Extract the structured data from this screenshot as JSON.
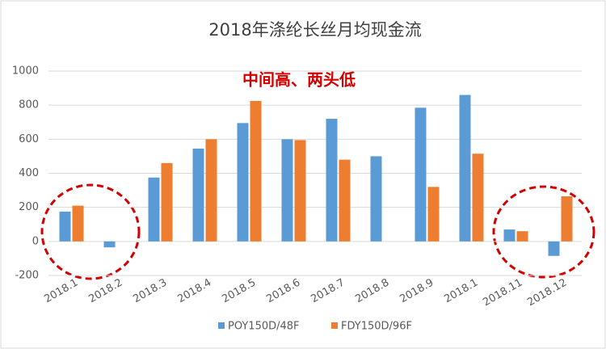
{
  "chart_data": {
    "type": "bar",
    "title": "2018年涤纶长丝月均现金流",
    "annotation": "中间高、两头低",
    "categories": [
      "2018.1",
      "2018.2",
      "2018.3",
      "2018.4",
      "2018.5",
      "2018.6",
      "2018.7",
      "2018.8",
      "2018.9",
      "2018.1",
      "2018.11",
      "2018.12"
    ],
    "series": [
      {
        "name": "POY150D/48F",
        "color": "#5b9bd5",
        "values": [
          175,
          -35,
          375,
          545,
          695,
          600,
          720,
          500,
          785,
          860,
          70,
          -85
        ]
      },
      {
        "name": "FDY150D/96F",
        "color": "#ed7d31",
        "values": [
          210,
          null,
          460,
          600,
          825,
          595,
          480,
          null,
          320,
          515,
          60,
          265
        ]
      }
    ],
    "ylim": [
      -200,
      1000
    ],
    "yticks": [
      -200,
      0,
      200,
      400,
      600,
      800,
      1000
    ],
    "grid": true,
    "legend": "bottom"
  }
}
